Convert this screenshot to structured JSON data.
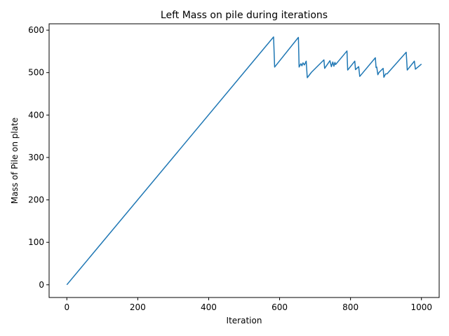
{
  "chart_data": {
    "type": "line",
    "title": "Left Mass on pile during iterations",
    "xlabel": "Iteration",
    "ylabel": "Mass of Pile on plate",
    "xlim": [
      -50,
      1050
    ],
    "ylim": [
      -30,
      615
    ],
    "xticks": [
      0,
      200,
      400,
      600,
      800,
      1000
    ],
    "yticks": [
      0,
      100,
      200,
      300,
      400,
      500,
      600
    ],
    "grid": false,
    "legend": "none",
    "series": [
      {
        "color": "#1f77b4",
        "x": [
          0,
          583,
          586,
          653,
          655,
          660,
          663,
          666,
          670,
          675,
          678,
          690,
          725,
          727,
          742,
          746,
          750,
          753,
          756,
          758,
          790,
          792,
          812,
          814,
          823,
          826,
          870,
          872,
          874,
          877,
          880,
          892,
          894,
          899,
          903,
          957,
          960,
          980,
          983,
          1000
        ],
        "y": [
          0,
          584,
          513,
          583,
          513,
          521,
          516,
          523,
          518,
          527,
          488,
          501,
          530,
          510,
          528,
          514,
          525,
          515,
          524,
          519,
          551,
          506,
          527,
          507,
          514,
          491,
          535,
          512,
          513,
          495,
          500,
          510,
          489,
          497,
          497,
          548,
          506,
          527,
          508,
          520
        ]
      }
    ]
  }
}
